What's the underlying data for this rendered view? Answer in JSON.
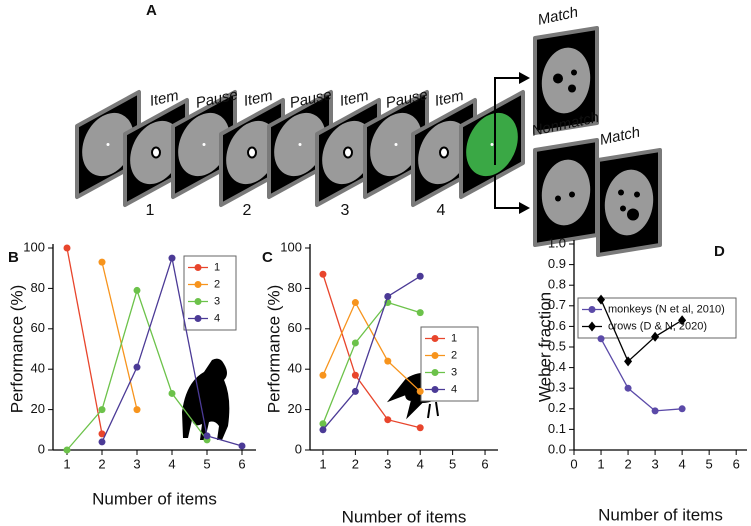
{
  "diagram": {
    "panel_label": "A",
    "steps": [
      "Item",
      "Pause",
      "Item",
      "Pause",
      "Item",
      "Pause",
      "Item"
    ],
    "numbers": [
      "1",
      "2",
      "3",
      "4"
    ],
    "outcomes": [
      "Match",
      "Nonmatch",
      "Match"
    ]
  },
  "chart_data": [
    {
      "type": "line",
      "panel_label": "B",
      "xlabel": "Number of items",
      "ylabel": "Performance (%)",
      "x": [
        1,
        2,
        3,
        4,
        5,
        6
      ],
      "xlim": [
        0.6,
        6.4
      ],
      "xticks": [
        1,
        2,
        3,
        4,
        5,
        6
      ],
      "ylim": [
        0,
        100
      ],
      "yticks": [
        0,
        20,
        40,
        60,
        80,
        100
      ],
      "legend": "upper right",
      "marker": "circle",
      "series": [
        {
          "name": "1",
          "color": "#e8452c",
          "values": [
            100,
            8,
            null,
            null,
            null,
            null
          ]
        },
        {
          "name": "2",
          "color": "#f7941d",
          "values": [
            null,
            93,
            20,
            null,
            null,
            null
          ]
        },
        {
          "name": "3",
          "color": "#6cc24a",
          "values": [
            0,
            20,
            79,
            28,
            5,
            null
          ]
        },
        {
          "name": "4",
          "color": "#4b3a96",
          "values": [
            null,
            4,
            41,
            95,
            7,
            2
          ]
        }
      ]
    },
    {
      "type": "line",
      "panel_label": "C",
      "xlabel": "Number of items",
      "ylabel": "Performance (%)",
      "x": [
        1,
        2,
        3,
        4
      ],
      "xlim": [
        0.6,
        6.4
      ],
      "xticks": [
        1,
        2,
        3,
        4,
        5,
        6
      ],
      "ylim": [
        0,
        100
      ],
      "yticks": [
        0,
        20,
        40,
        60,
        80,
        100
      ],
      "legend": "center right",
      "marker": "circle",
      "series": [
        {
          "name": "1",
          "color": "#e8452c",
          "values": [
            87,
            37,
            15,
            11
          ]
        },
        {
          "name": "2",
          "color": "#f7941d",
          "values": [
            37,
            73,
            44,
            29
          ]
        },
        {
          "name": "3",
          "color": "#6cc24a",
          "values": [
            13,
            53,
            73,
            68
          ]
        },
        {
          "name": "4",
          "color": "#4b3a96",
          "values": [
            10,
            29,
            76,
            86
          ]
        }
      ]
    },
    {
      "type": "line",
      "panel_label": "D",
      "xlabel": "Number of items",
      "ylabel": "Weber fraction",
      "x": [
        1,
        2,
        3,
        4
      ],
      "xlim": [
        0,
        6.4
      ],
      "xticks": [
        0,
        1,
        2,
        3,
        4,
        5,
        6
      ],
      "ylim": [
        0,
        1
      ],
      "yticks": [
        {
          "value": 0,
          "label": "0.0"
        },
        0.1,
        0.2,
        0.3,
        0.4,
        0.5,
        0.6,
        0.7,
        0.8,
        0.9,
        {
          "value": 1,
          "label": "1.0"
        }
      ],
      "legend": "upper left",
      "series": [
        {
          "name": "monkeys (N et al, 2010)",
          "color": "#5b4aa8",
          "marker": "circle",
          "values": [
            0.54,
            0.3,
            0.19,
            0.2
          ]
        },
        {
          "name": "crows (D & N, 2020)",
          "color": "#000000",
          "marker": "diamond",
          "values": [
            0.73,
            0.43,
            0.55,
            0.63
          ]
        }
      ]
    }
  ]
}
